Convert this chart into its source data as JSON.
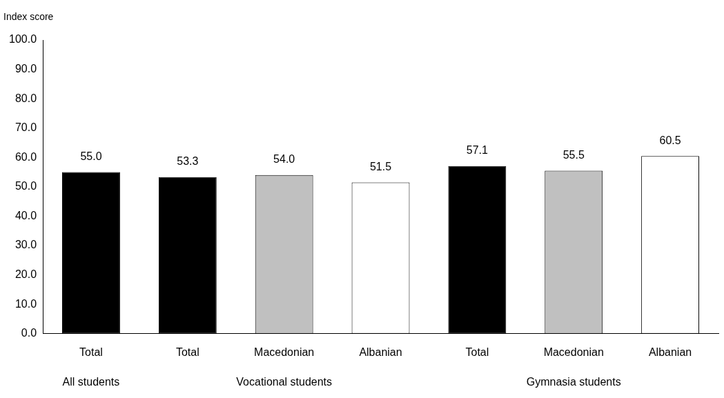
{
  "chart_data": {
    "type": "bar",
    "ylabel": "Index score",
    "categories": [
      "Total",
      "Total",
      "Macedonian",
      "Albanian",
      "Total",
      "Macedonian",
      "Albanian"
    ],
    "values": [
      55.0,
      53.3,
      54.0,
      51.5,
      57.1,
      55.5,
      60.5
    ],
    "colors": [
      "#000000",
      "#000000",
      "#c0c0c0",
      "#ffffff",
      "#000000",
      "#c0c0c0",
      "#ffffff"
    ],
    "ylim": [
      0,
      100
    ],
    "yticks": [
      {
        "value": 0,
        "label": "0.0"
      },
      {
        "value": 10,
        "label": "10.0"
      },
      {
        "value": 20,
        "label": "20.0"
      },
      {
        "value": 30,
        "label": "30.0"
      },
      {
        "value": 40,
        "label": "40.0"
      },
      {
        "value": 50,
        "label": "50.0"
      },
      {
        "value": 60,
        "label": "60.0"
      },
      {
        "value": 70,
        "label": "70.0"
      },
      {
        "value": 80,
        "label": "80.0"
      },
      {
        "value": 90,
        "label": "90.0"
      },
      {
        "value": 100,
        "label": "100.0"
      }
    ],
    "value_labels": [
      "55.0",
      "53.3",
      "54.0",
      "51.5",
      "57.1",
      "55.5",
      "60.5"
    ],
    "grid": false,
    "legend": false,
    "annotations": [
      "All students",
      "Vocational students",
      "Gymnasia students"
    ]
  }
}
